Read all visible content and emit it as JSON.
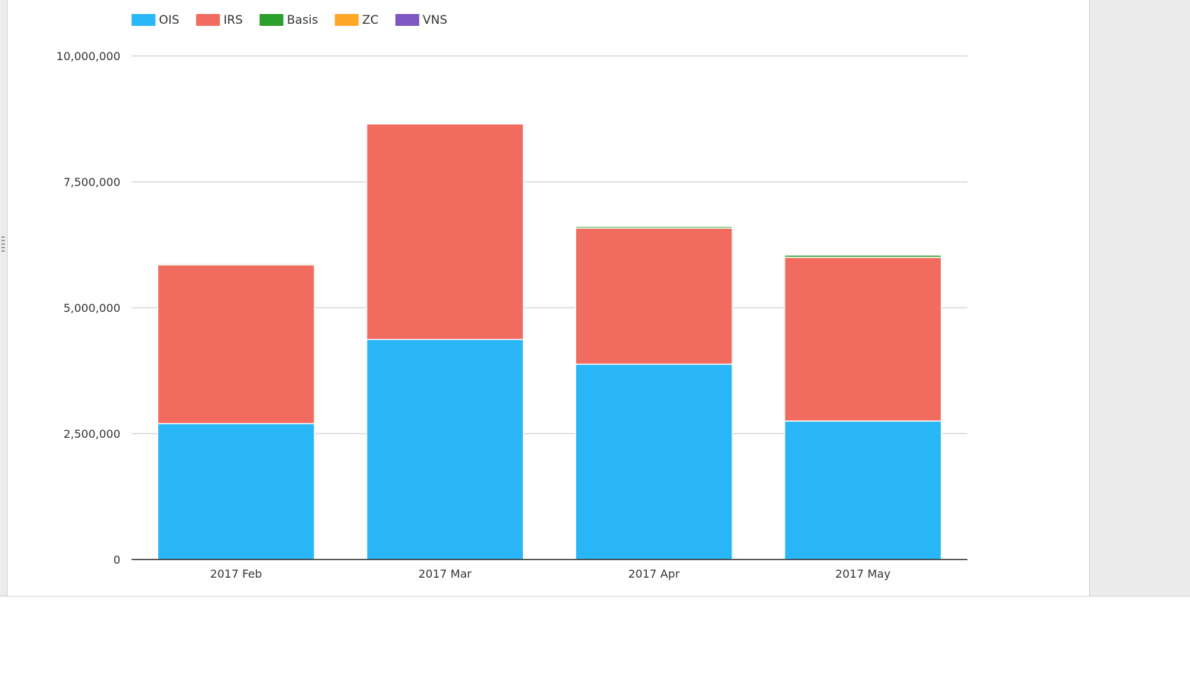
{
  "chart_data": {
    "type": "bar",
    "stacked": true,
    "categories": [
      "2017 Feb",
      "2017 Mar",
      "2017 Apr",
      "2017 May"
    ],
    "series": [
      {
        "name": "OIS",
        "color": "#29b6f6",
        "values": [
          2700000,
          4370000,
          3880000,
          2750000
        ]
      },
      {
        "name": "IRS",
        "color": "#f26b5f",
        "values": [
          3150000,
          4280000,
          2700000,
          3250000
        ]
      },
      {
        "name": "Basis",
        "color": "#2ca02c",
        "values": [
          25000,
          20000,
          35000,
          45000
        ]
      },
      {
        "name": "ZC",
        "color": "#ffa726",
        "values": [
          15000,
          10000,
          10000,
          10000
        ]
      },
      {
        "name": "VNS",
        "color": "#7e57c2",
        "values": [
          0,
          0,
          0,
          0
        ]
      }
    ],
    "title": "",
    "xlabel": "",
    "ylabel": "",
    "ylim": [
      0,
      10000000
    ],
    "yticks": [
      0,
      2500000,
      5000000,
      7500000,
      10000000
    ],
    "ytick_labels": [
      "0",
      "2,500,000",
      "5,000,000",
      "7,500,000",
      "10,000,000"
    ],
    "grid": true,
    "legend_position": "top-left"
  }
}
